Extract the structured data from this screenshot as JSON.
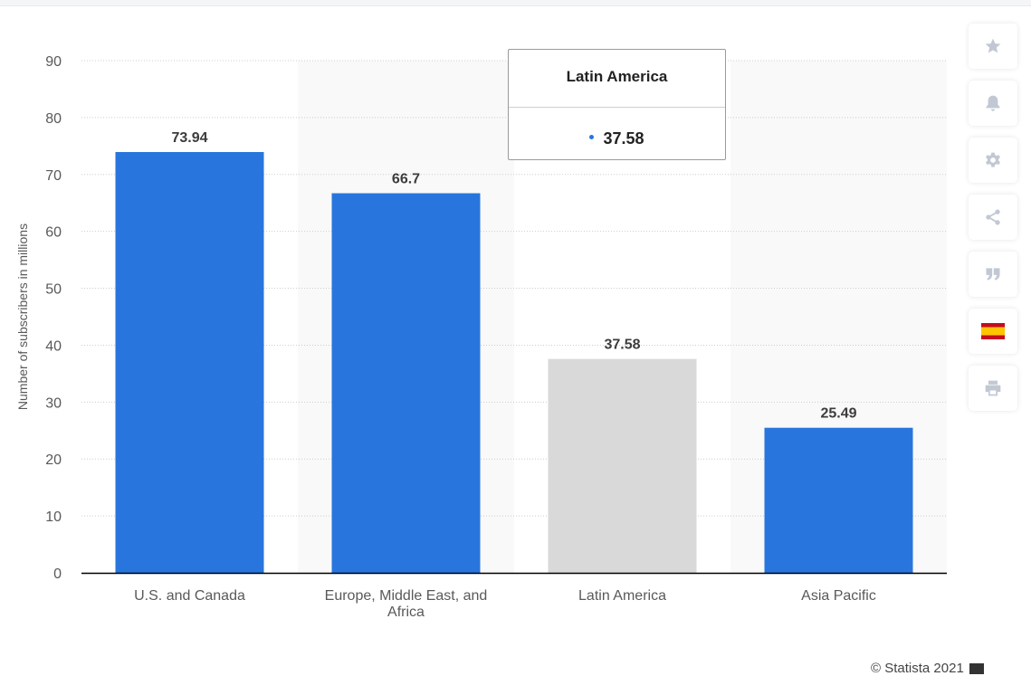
{
  "chart_data": {
    "type": "bar",
    "categories": [
      "U.S. and Canada",
      "Europe, Middle East, and Africa",
      "Latin America",
      "Asia Pacific"
    ],
    "values": [
      73.94,
      66.7,
      37.58,
      25.49
    ],
    "value_labels": [
      "73.94",
      "66.7",
      "37.58",
      "25.49"
    ],
    "title": "",
    "xlabel": "",
    "ylabel": "Number of subscribers in millions",
    "ylim": [
      0,
      90
    ],
    "yticks": [
      0,
      10,
      20,
      30,
      40,
      50,
      60,
      70,
      80,
      90
    ],
    "grid": true,
    "highlighted_category": "Latin America",
    "colors": {
      "bar": "#2876dd",
      "highlighted_bar": "#d9d9d9",
      "band": "#f9f9f9",
      "grid": "#cccccc",
      "axis": "#000000"
    }
  },
  "tooltip": {
    "title": "Latin America",
    "value": "37.58",
    "dot_color": "#2876dd"
  },
  "toolbar": {
    "buttons": [
      {
        "name": "favorite",
        "icon": "star-icon"
      },
      {
        "name": "notification",
        "icon": "bell-icon"
      },
      {
        "name": "settings",
        "icon": "gear-icon"
      },
      {
        "name": "share",
        "icon": "share-icon"
      },
      {
        "name": "cite",
        "icon": "quote-icon"
      },
      {
        "name": "language",
        "icon": "spain-flag-icon"
      },
      {
        "name": "print",
        "icon": "print-icon"
      }
    ],
    "icon_color": "#c2c8d3"
  },
  "credit": "© Statista 2021"
}
